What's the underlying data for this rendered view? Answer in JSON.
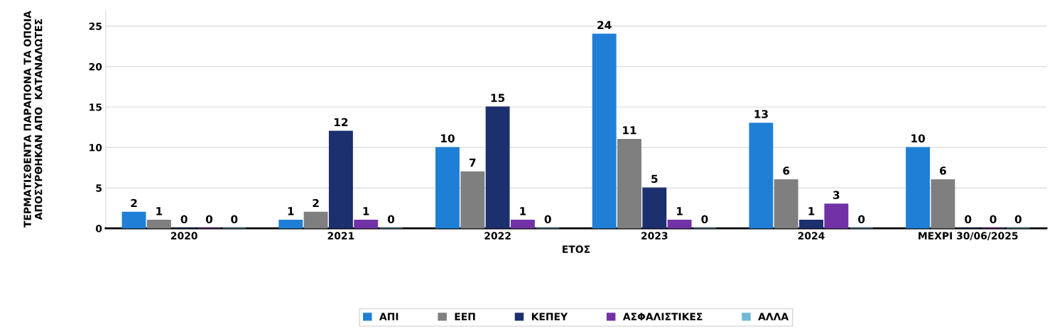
{
  "chart_data": {
    "type": "bar",
    "xlabel": "ΕΤΟΣ",
    "ylabel": "ΤΕΡΜΑΤΙΣΘΕΝΤΑ ΠΑΡΑΠΟΝΑ ΤΑ ΟΠΟΙΑ\nΑΠΟΣΥΡΘΗΚΑΝ ΑΠΟ  ΚΑΤΑΝΑΛΩΤΕΣ",
    "categories": [
      "2020",
      "2021",
      "2022",
      "2023",
      "2024",
      "ΜΕΧΡΙ 30/06/2025"
    ],
    "series": [
      {
        "name": "ΑΠΙ",
        "color": "#1f7fd6",
        "values": [
          2,
          1,
          10,
          24,
          13,
          10
        ]
      },
      {
        "name": "ΕΕΠ",
        "color": "#7f7f7f",
        "values": [
          1,
          2,
          7,
          11,
          6,
          6
        ]
      },
      {
        "name": "ΚΕΠΕΥ",
        "color": "#1c2f6e",
        "values": [
          0,
          12,
          15,
          5,
          1,
          0
        ]
      },
      {
        "name": "ΑΣΦΑΛΙΣΤΙΚΕΣ",
        "color": "#7232a6",
        "values": [
          0,
          1,
          1,
          1,
          3,
          0
        ]
      },
      {
        "name": "ΑΛΛΑ",
        "color": "#6fb8d8",
        "values": [
          0,
          0,
          0,
          0,
          0,
          0
        ]
      }
    ],
    "ylim": [
      0,
      27
    ],
    "yticks": [
      0,
      5,
      10,
      15,
      20,
      25
    ],
    "grid": "y",
    "legend": "bottom",
    "data_labels": true
  }
}
